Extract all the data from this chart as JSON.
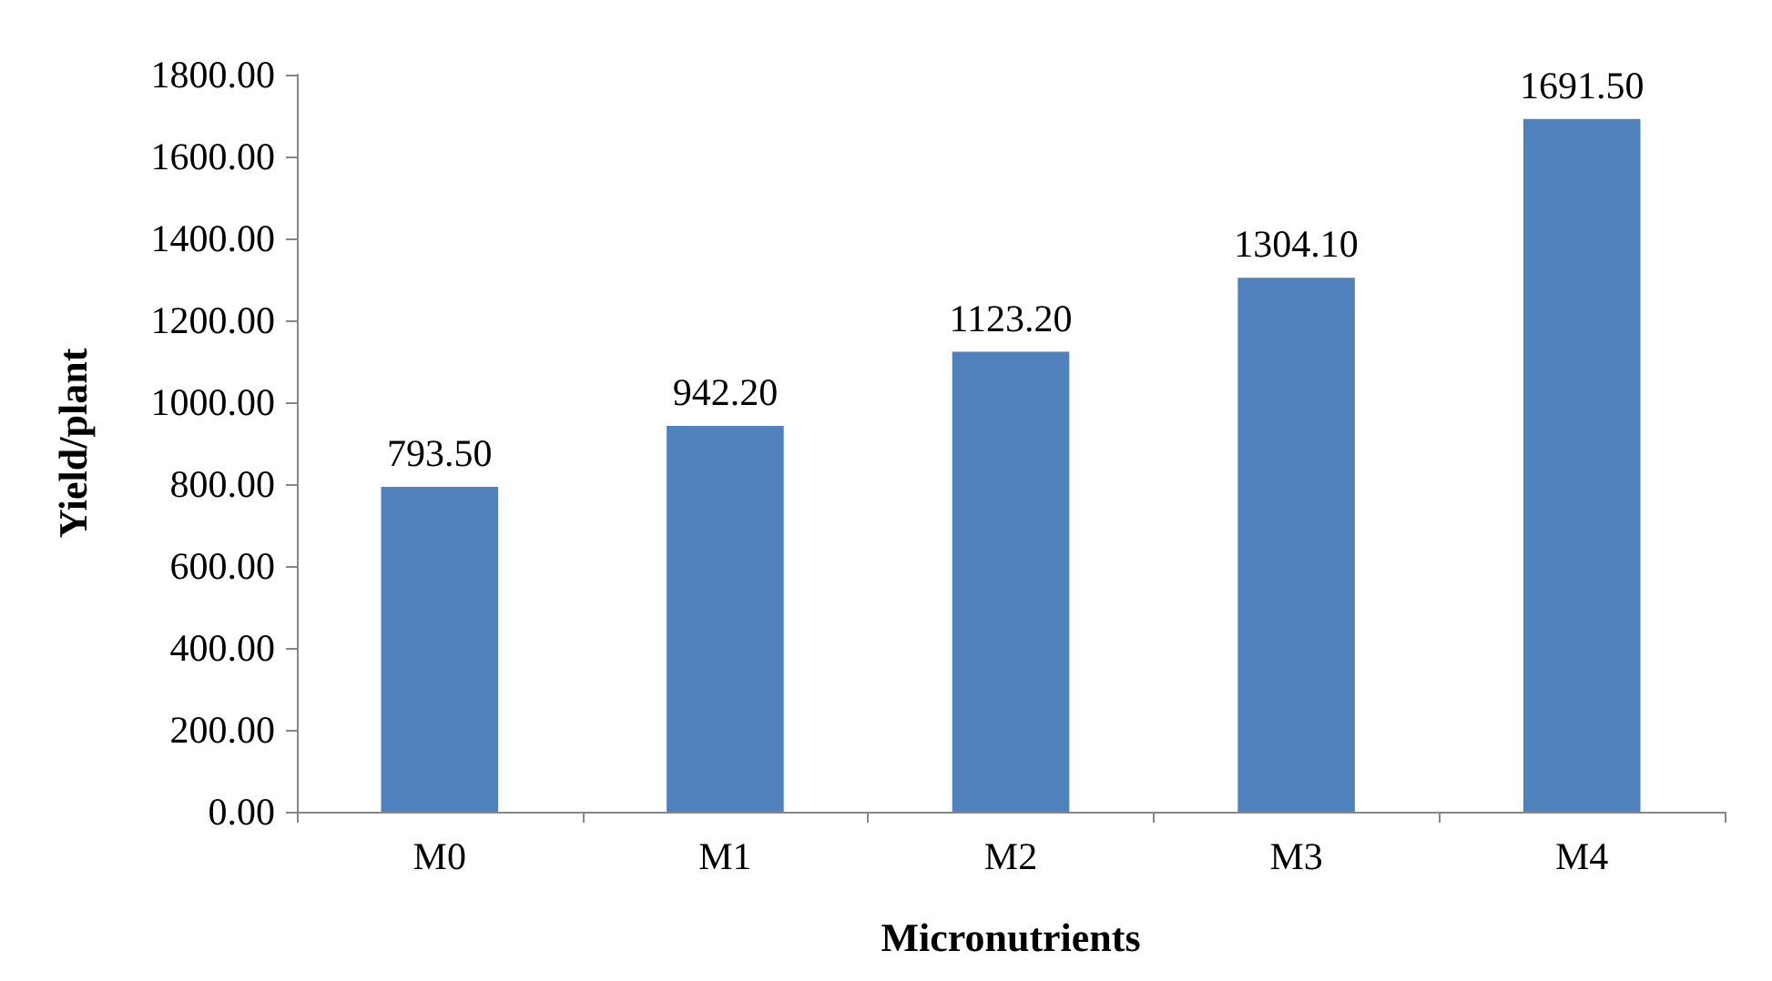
{
  "chart_data": {
    "type": "bar",
    "xlabel": "Micronutrients",
    "ylabel": "Yield/plant",
    "categories": [
      "M0",
      "M1",
      "M2",
      "M3",
      "M4"
    ],
    "values": [
      793.5,
      942.2,
      1123.2,
      1304.1,
      1691.5
    ],
    "value_labels": [
      "793.50",
      "942.20",
      "1123.20",
      "1304.10",
      "1691.50"
    ],
    "color": "#4f81bd",
    "ylim": [
      0,
      1800
    ],
    "yticks": [
      {
        "value": 0,
        "label": "0.00"
      },
      {
        "value": 200,
        "label": "200.00"
      },
      {
        "value": 400,
        "label": "400.00"
      },
      {
        "value": 600,
        "label": "600.00"
      },
      {
        "value": 800,
        "label": "800.00"
      },
      {
        "value": 1000,
        "label": "1000.00"
      },
      {
        "value": 1200,
        "label": "1200.00"
      },
      {
        "value": 1400,
        "label": "1400.00"
      },
      {
        "value": 1600,
        "label": "1600.00"
      },
      {
        "value": 1800,
        "label": "1800.00"
      }
    ],
    "grid": false
  }
}
